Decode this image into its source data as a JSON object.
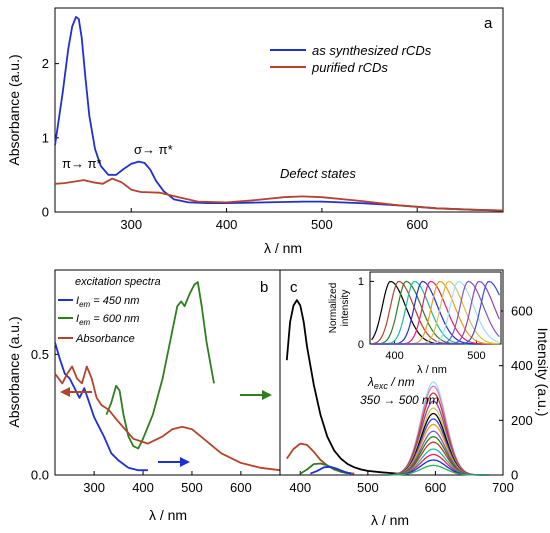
{
  "colors": {
    "blue": "#1f2fd6",
    "red": "#b5432b",
    "green": "#2e7d1f",
    "black": "#000000"
  },
  "chart_data": [
    {
      "id": "a",
      "type": "line",
      "panel_label": "a",
      "xlabel": "λ / nm",
      "ylabel": "Absorbance (a.u.)",
      "xlim": [
        220,
        690
      ],
      "ylim": [
        0,
        2.75
      ],
      "xticks": [
        300,
        400,
        500,
        600
      ],
      "yticks": [
        0,
        1,
        2
      ],
      "legend_position": "top-right",
      "annotations": [
        {
          "text": "π→ π*",
          "x": 225,
          "y": 0.62
        },
        {
          "text": "σ→ π*",
          "x": 290,
          "y": 0.86
        },
        {
          "text": "Defect states",
          "x": 430,
          "y": 0.44
        }
      ],
      "series": [
        {
          "name": "as synthesized rCDs",
          "color": "#1f2fd6",
          "x": [
            220,
            228,
            234,
            238,
            242,
            245,
            248,
            252,
            256,
            262,
            268,
            276,
            284,
            292,
            300,
            308,
            314,
            320,
            326,
            334,
            345,
            360,
            380,
            400,
            440,
            480,
            500,
            540,
            580,
            620,
            660,
            690
          ],
          "y": [
            0.9,
            1.6,
            2.2,
            2.5,
            2.63,
            2.6,
            2.35,
            1.8,
            1.3,
            0.85,
            0.62,
            0.5,
            0.5,
            0.58,
            0.65,
            0.68,
            0.66,
            0.57,
            0.42,
            0.28,
            0.17,
            0.13,
            0.12,
            0.12,
            0.13,
            0.14,
            0.14,
            0.12,
            0.09,
            0.05,
            0.03,
            0.02
          ]
        },
        {
          "name": "purified rCDs",
          "color": "#b5432b",
          "x": [
            220,
            230,
            240,
            250,
            260,
            270,
            280,
            290,
            300,
            310,
            330,
            350,
            370,
            400,
            430,
            460,
            480,
            500,
            540,
            580,
            620,
            660,
            690
          ],
          "y": [
            0.38,
            0.39,
            0.41,
            0.43,
            0.4,
            0.38,
            0.45,
            0.4,
            0.3,
            0.27,
            0.26,
            0.2,
            0.14,
            0.13,
            0.16,
            0.2,
            0.21,
            0.2,
            0.15,
            0.09,
            0.05,
            0.03,
            0.02
          ]
        }
      ]
    },
    {
      "id": "b",
      "type": "line",
      "panel_label": "b",
      "xlabel": "λ / nm",
      "ylabel": "Absorbance (a.u.)",
      "xlim": [
        220,
        680
      ],
      "ylim": [
        0,
        0.85
      ],
      "xticks": [
        300,
        400,
        500,
        600
      ],
      "yticks": [
        0.0,
        0.5
      ],
      "legend_title": "excitation spectra",
      "legend_position": "top-left",
      "series": [
        {
          "name": "Iem = 450 nm",
          "label_main": "I",
          "label_sub": "em",
          "label_rest": " = 450 nm",
          "color": "#1f2fd6",
          "x": [
            220,
            230,
            240,
            250,
            260,
            270,
            280,
            290,
            300,
            310,
            320,
            335,
            350,
            370,
            390,
            410
          ],
          "y": [
            0.55,
            0.48,
            0.42,
            0.4,
            0.36,
            0.32,
            0.36,
            0.3,
            0.24,
            0.2,
            0.16,
            0.09,
            0.06,
            0.03,
            0.02,
            0.02
          ]
        },
        {
          "name": "Iem = 600 nm",
          "label_main": "I",
          "label_sub": "em",
          "label_rest": " = 600 nm",
          "color": "#2e7d1f",
          "x": [
            325,
            335,
            345,
            352,
            360,
            370,
            380,
            390,
            400,
            420,
            440,
            460,
            470,
            478,
            485,
            495,
            505,
            512,
            520,
            530,
            545
          ],
          "y": [
            0.25,
            0.3,
            0.37,
            0.35,
            0.25,
            0.16,
            0.12,
            0.11,
            0.15,
            0.25,
            0.4,
            0.6,
            0.7,
            0.72,
            0.7,
            0.75,
            0.79,
            0.8,
            0.7,
            0.55,
            0.38
          ]
        },
        {
          "name": "Absorbance",
          "color": "#b5432b",
          "x": [
            220,
            235,
            245,
            255,
            265,
            275,
            285,
            295,
            305,
            315,
            330,
            350,
            380,
            410,
            440,
            460,
            480,
            500,
            530,
            560,
            600,
            640,
            680
          ],
          "y": [
            0.42,
            0.38,
            0.42,
            0.45,
            0.4,
            0.38,
            0.45,
            0.4,
            0.32,
            0.29,
            0.27,
            0.22,
            0.15,
            0.13,
            0.16,
            0.19,
            0.2,
            0.19,
            0.14,
            0.09,
            0.05,
            0.03,
            0.02
          ]
        }
      ]
    },
    {
      "id": "c",
      "type": "line",
      "panel_label": "c",
      "xlabel": "λ / nm",
      "ylabel": "Intensity (a.u.)",
      "xlim": [
        370,
        700
      ],
      "ylim": [
        0,
        750
      ],
      "xticks": [
        400,
        500,
        600,
        700
      ],
      "yticks": [
        0,
        200,
        400,
        600
      ],
      "annotation_lambda": "λ",
      "annotation_lambda_sub": "exc",
      "annotation_lambda_rest": " / nm",
      "annotation_range": "350 → 500 nm",
      "series": [
        {
          "name": "",
          "color": "#000000",
          "x": [
            380,
            385,
            390,
            395,
            400,
            405,
            410,
            420,
            430,
            440,
            450,
            460,
            470,
            480,
            490,
            500,
            520,
            540,
            560
          ],
          "y": [
            420,
            560,
            620,
            640,
            620,
            560,
            470,
            330,
            220,
            140,
            90,
            60,
            40,
            28,
            20,
            15,
            10,
            6,
            3
          ]
        },
        {
          "name": "",
          "color": "#b5432b",
          "x": [
            380,
            390,
            400,
            410,
            420,
            430,
            440,
            450,
            460,
            470,
            480
          ],
          "y": [
            60,
            95,
            115,
            110,
            85,
            55,
            35,
            20,
            12,
            8,
            5
          ]
        },
        {
          "name": "",
          "color": "#2e7d1f",
          "x": [
            400,
            410,
            420,
            430,
            440,
            450,
            460,
            470
          ],
          "y": [
            5,
            20,
            40,
            42,
            35,
            22,
            12,
            6
          ]
        },
        {
          "name": "",
          "color": "#1f2fd6",
          "x": [
            415,
            425,
            435,
            445,
            455,
            465,
            475
          ],
          "y": [
            5,
            15,
            28,
            30,
            22,
            12,
            5
          ]
        }
      ],
      "emission_peaks": [
        {
          "color": "#9fdff3",
          "peak": 340
        },
        {
          "color": "#e377c2",
          "peak": 325
        },
        {
          "color": "#b5432b",
          "peak": 300
        },
        {
          "color": "#8e44ad",
          "peak": 270
        },
        {
          "color": "#d4c24a",
          "peak": 245
        },
        {
          "color": "#000000",
          "peak": 225
        },
        {
          "color": "#3d4bd8",
          "peak": 205
        },
        {
          "color": "#f39c12",
          "peak": 185
        },
        {
          "color": "#7e57c2",
          "peak": 160
        },
        {
          "color": "#2e7d1f",
          "peak": 140
        },
        {
          "color": "#c0392b",
          "peak": 120
        },
        {
          "color": "#1abc9c",
          "peak": 95
        },
        {
          "color": "#e91e63",
          "peak": 75
        },
        {
          "color": "#1f2fd6",
          "peak": 55
        },
        {
          "color": "#27ae60",
          "peak": 35
        }
      ],
      "inset": {
        "xlabel": "λ / nm",
        "ylabel_line1": "Normalized",
        "ylabel_line2": "intensity",
        "xlim": [
          370,
          530
        ],
        "ylim": [
          0,
          1.15
        ],
        "xticks": [
          400,
          500
        ],
        "yticks": [
          0,
          1
        ],
        "curves": [
          {
            "color": "#000000",
            "peak": 395
          },
          {
            "color": "#b5432b",
            "peak": 405
          },
          {
            "color": "#2e7d1f",
            "peak": 414
          },
          {
            "color": "#1abc9c",
            "peak": 424
          },
          {
            "color": "#1f2fd6",
            "peak": 434
          },
          {
            "color": "#e91e63",
            "peak": 444
          },
          {
            "color": "#f39c12",
            "peak": 455
          },
          {
            "color": "#d4c24a",
            "peak": 466
          },
          {
            "color": "#9fdff3",
            "peak": 478
          },
          {
            "color": "#7e57c2",
            "peak": 490
          },
          {
            "color": "#8e44ad",
            "peak": 503
          },
          {
            "color": "#3d4bd8",
            "peak": 515
          }
        ]
      }
    }
  ]
}
